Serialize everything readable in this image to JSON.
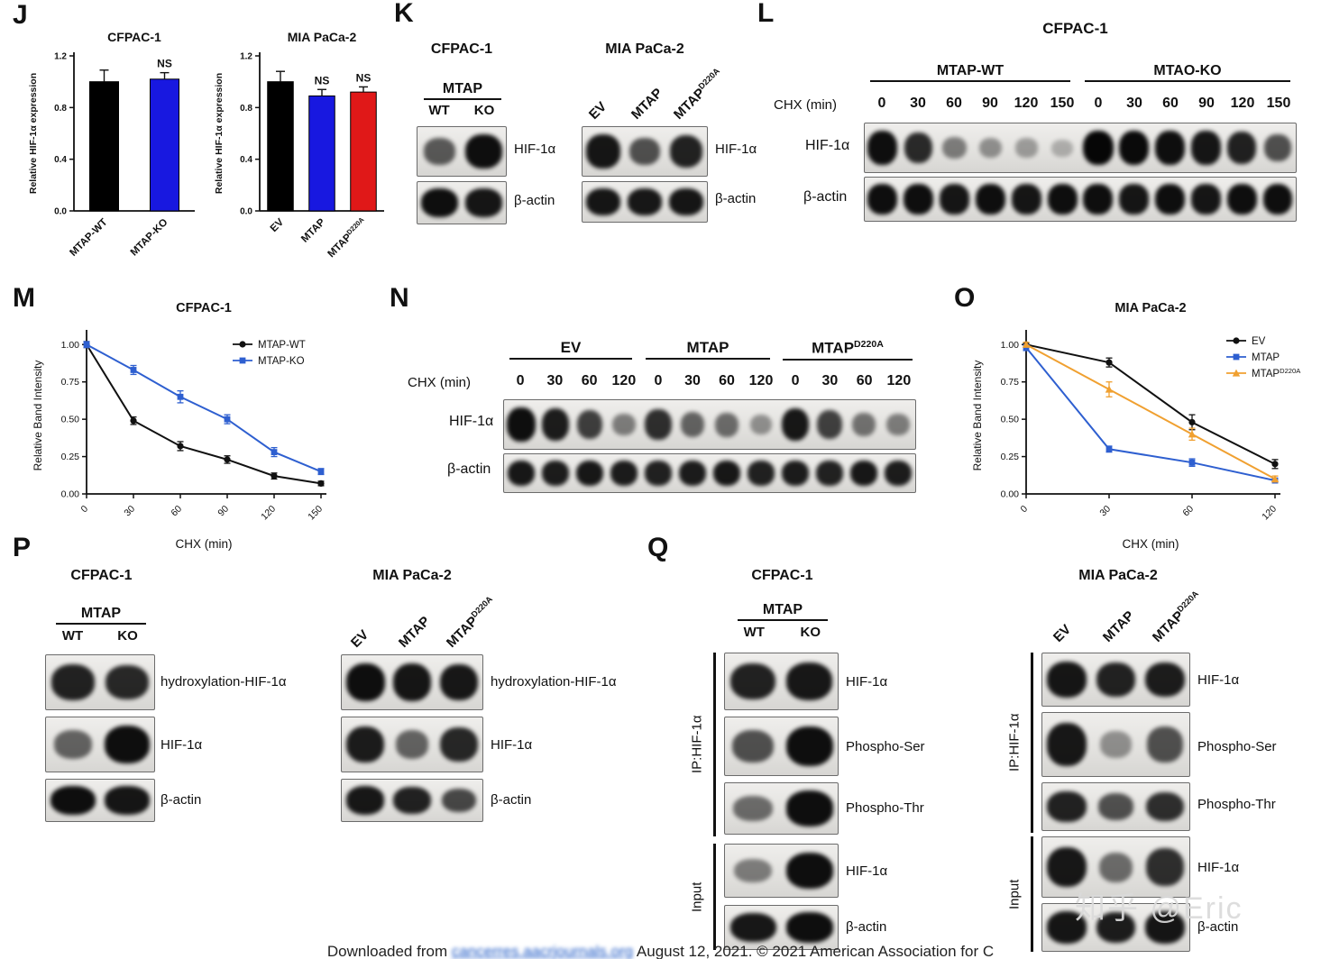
{
  "watermark": "知乎 @Eric",
  "footer": {
    "prefix": "Downloaded from ",
    "link": "cancerres.aacrjournals.org",
    "suffix": " August 12, 2021. © 2021 American Association for C"
  },
  "panels": {
    "J": {
      "letter": "J"
    },
    "K": {
      "letter": "K",
      "blots": [
        {
          "title": "CFPAC-1",
          "header": "MTAP",
          "lanes": [
            "WT",
            "KO"
          ],
          "rows": [
            {
              "label": "HIF-1α",
              "bands": [
                0.55,
                0.95
              ]
            },
            {
              "label": "β-actin",
              "bands": [
                0.95,
                0.92
              ]
            }
          ]
        },
        {
          "title": "MIA PaCa-2",
          "lanes": [
            "EV",
            "MTAP",
            "MTAP^D220A"
          ],
          "rows": [
            {
              "label": "HIF-1α",
              "bands": [
                0.92,
                0.6,
                0.85
              ]
            },
            {
              "label": "β-actin",
              "bands": [
                0.92,
                0.9,
                0.92
              ]
            }
          ]
        }
      ]
    },
    "L": {
      "letter": "L",
      "title": "CFPAC-1",
      "groups": [
        "MTAP-WT",
        "MTAO-KO"
      ],
      "chx_label": "CHX (min)",
      "timepoints": [
        "0",
        "30",
        "60",
        "90",
        "120",
        "150"
      ],
      "rows": [
        {
          "label": "HIF-1α",
          "bands": [
            0.95,
            0.8,
            0.35,
            0.25,
            0.18,
            0.08,
            1,
            0.98,
            0.95,
            0.92,
            0.85,
            0.6
          ]
        },
        {
          "label": "β-actin",
          "bands": [
            0.95,
            0.95,
            0.92,
            0.95,
            0.92,
            0.95,
            0.95,
            0.92,
            0.95,
            0.92,
            0.95,
            0.95
          ]
        }
      ]
    },
    "M": {
      "letter": "M"
    },
    "N": {
      "letter": "N",
      "groups": [
        "EV",
        "MTAP",
        "MTAP^D220A"
      ],
      "chx_label": "CHX (min)",
      "timepoints": [
        "0",
        "30",
        "60",
        "120"
      ],
      "rows": [
        {
          "label": "HIF-1α",
          "bands": [
            0.95,
            0.88,
            0.7,
            0.35,
            0.78,
            0.5,
            0.45,
            0.25,
            0.9,
            0.68,
            0.42,
            0.35
          ]
        },
        {
          "label": "β-actin",
          "bands": [
            0.9,
            0.88,
            0.9,
            0.88,
            0.85,
            0.88,
            0.9,
            0.85,
            0.88,
            0.85,
            0.9,
            0.88
          ]
        }
      ]
    },
    "O": {
      "letter": "O"
    },
    "P": {
      "letter": "P",
      "blots": [
        {
          "title": "CFPAC-1",
          "header": "MTAP",
          "lanes": [
            "WT",
            "KO"
          ],
          "rows": [
            {
              "label": "hydroxylation-HIF-1α",
              "bands": [
                0.85,
                0.82
              ]
            },
            {
              "label": "HIF-1α",
              "bands": [
                0.5,
                0.95
              ]
            },
            {
              "label": "β-actin",
              "bands": [
                0.95,
                0.92
              ]
            }
          ]
        },
        {
          "title": "MIA PaCa-2",
          "lanes": [
            "EV",
            "MTAP",
            "MTAP^D220A"
          ],
          "rows": [
            {
              "label": "hydroxylation-HIF-1α",
              "bands": [
                0.95,
                0.92,
                0.9
              ]
            },
            {
              "label": "HIF-1α",
              "bands": [
                0.88,
                0.5,
                0.82
              ]
            },
            {
              "label": "β-actin",
              "bands": [
                0.9,
                0.85,
                0.65
              ]
            }
          ]
        }
      ]
    },
    "Q": {
      "letter": "Q",
      "blots": [
        {
          "title": "CFPAC-1",
          "header": "MTAP",
          "lanes": [
            "WT",
            "KO"
          ],
          "ip_label": "IP:HIF-1α",
          "input_label": "Input",
          "ip_rows": [
            {
              "label": "HIF-1α",
              "bands": [
                0.85,
                0.9
              ]
            },
            {
              "label": "Phospho-Ser",
              "bands": [
                0.6,
                0.95
              ]
            },
            {
              "label": "Phospho-Thr",
              "bands": [
                0.45,
                0.95
              ]
            }
          ],
          "input_rows": [
            {
              "label": "HIF-1α",
              "bands": [
                0.35,
                0.95
              ]
            },
            {
              "label": "β-actin",
              "bands": [
                0.9,
                0.95
              ]
            }
          ]
        },
        {
          "title": "MIA PaCa-2",
          "lanes": [
            "EV",
            "MTAP",
            "MTAP^D220A"
          ],
          "ip_label": "IP:HIF-1α",
          "input_label": "Input",
          "ip_rows": [
            {
              "label": "HIF-1α",
              "bands": [
                0.92,
                0.85,
                0.88
              ]
            },
            {
              "label": "Phospho-Ser",
              "bands": [
                0.9,
                0.25,
                0.6
              ]
            },
            {
              "label": "Phospho-Thr",
              "bands": [
                0.85,
                0.6,
                0.78
              ]
            }
          ],
          "input_rows": [
            {
              "label": "HIF-1α",
              "bands": [
                0.9,
                0.45,
                0.78
              ]
            },
            {
              "label": "β-actin",
              "bands": [
                0.92,
                0.88,
                0.92
              ]
            }
          ]
        }
      ]
    }
  },
  "chart_data": [
    {
      "id": "J1",
      "type": "bar",
      "title": "CFPAC-1",
      "ylabel": "Relative HIF-1α expression",
      "categories": [
        "MTAP-WT",
        "MTAP-KO"
      ],
      "values": [
        1.0,
        1.02
      ],
      "errors": [
        0.09,
        0.05
      ],
      "colors": [
        "#000000",
        "#1818e0"
      ],
      "ns": [
        false,
        true
      ],
      "ylim": [
        0,
        1.2
      ],
      "yticks": [
        0.0,
        0.4,
        0.8,
        1.2
      ]
    },
    {
      "id": "J2",
      "type": "bar",
      "title": "MIA PaCa-2",
      "ylabel": "Relative HIF-1α expression",
      "categories": [
        "EV",
        "MTAP",
        "MTAP^D220A"
      ],
      "values": [
        1.0,
        0.89,
        0.92
      ],
      "errors": [
        0.08,
        0.05,
        0.04
      ],
      "colors": [
        "#000000",
        "#1818e0",
        "#e01818"
      ],
      "ns": [
        false,
        true,
        true
      ],
      "ylim": [
        0,
        1.2
      ],
      "yticks": [
        0.0,
        0.4,
        0.8,
        1.2
      ]
    },
    {
      "id": "M",
      "type": "line",
      "title": "CFPAC-1",
      "xlabel": "CHX (min)",
      "ylabel": "Relative Band Intensity",
      "x": [
        "0",
        "30",
        "60",
        "90",
        "120",
        "150"
      ],
      "ylim": [
        0,
        1.05
      ],
      "yticks": [
        0,
        0.25,
        0.5,
        0.75,
        1.0
      ],
      "series": [
        {
          "name": "MTAP-WT",
          "color": "#111111",
          "marker": "circle",
          "values": [
            1.0,
            0.49,
            0.32,
            0.23,
            0.12,
            0.07
          ],
          "errors": [
            0.02,
            0.025,
            0.03,
            0.025,
            0.02,
            0.015
          ]
        },
        {
          "name": "MTAP-KO",
          "color": "#2e5fd0",
          "marker": "square",
          "values": [
            1.0,
            0.83,
            0.65,
            0.5,
            0.28,
            0.15
          ],
          "errors": [
            0.02,
            0.03,
            0.04,
            0.03,
            0.03,
            0.02
          ]
        }
      ]
    },
    {
      "id": "O",
      "type": "line",
      "title": "MIA PaCa-2",
      "xlabel": "CHX (min)",
      "ylabel": "Relative Band Intensity",
      "x": [
        "0",
        "30",
        "60",
        "120"
      ],
      "ylim": [
        0,
        1.05
      ],
      "yticks": [
        0,
        0.25,
        0.5,
        0.75,
        1.0
      ],
      "series": [
        {
          "name": "EV",
          "color": "#111111",
          "marker": "circle",
          "values": [
            1.0,
            0.88,
            0.48,
            0.2
          ],
          "errors": [
            0.01,
            0.03,
            0.05,
            0.03
          ]
        },
        {
          "name": "MTAP",
          "color": "#2e5fd0",
          "marker": "square",
          "values": [
            0.98,
            0.3,
            0.21,
            0.09
          ],
          "errors": [
            0.02,
            0.02,
            0.025,
            0.015
          ]
        },
        {
          "name": "MTAP^D220A",
          "color": "#f0a030",
          "marker": "triangle",
          "values": [
            1.0,
            0.7,
            0.4,
            0.1
          ],
          "errors": [
            0.015,
            0.05,
            0.04,
            0.02
          ]
        }
      ]
    }
  ]
}
